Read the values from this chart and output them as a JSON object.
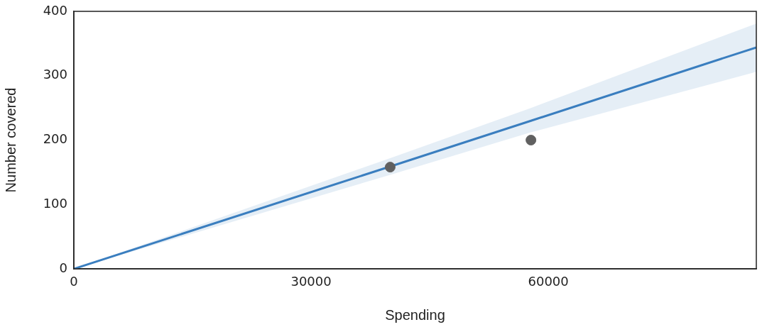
{
  "chart_data": {
    "type": "scatter",
    "xlabel": "Spending",
    "ylabel": "Number covered",
    "xlim": [
      0,
      86300
    ],
    "ylim": [
      0,
      400
    ],
    "xticks": [
      0,
      30000,
      60000
    ],
    "yticks": [
      0,
      100,
      200,
      300,
      400
    ],
    "grid": false,
    "legend": false,
    "series": [
      {
        "type": "line",
        "color": "#3a7ebf",
        "x": [
          0,
          40000,
          57800,
          86300
        ],
        "values": [
          0,
          159,
          230,
          344
        ],
        "lower": [
          0,
          146,
          212,
          306
        ],
        "upper": [
          0,
          172,
          250,
          381
        ],
        "marker": "none"
      },
      {
        "color": "#606060",
        "x": [
          40000,
          57800
        ],
        "values": [
          158,
          200
        ],
        "marker": "circle"
      }
    ]
  }
}
